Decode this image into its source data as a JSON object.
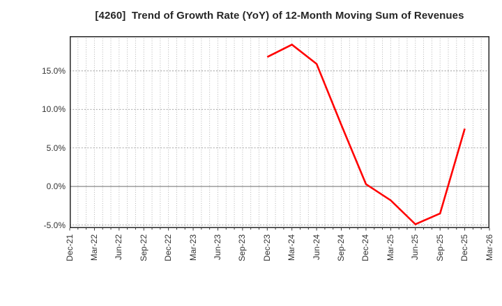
{
  "title": "[4260]  Trend of Growth Rate (YoY) of 12-Month Moving Sum of Revenues",
  "colors": {
    "line": "#ff0000",
    "plot_border": "#262626",
    "grid_minor": "#aaaaaa",
    "grid_major": "#999999",
    "zero_line": "#888888",
    "text": "#333333",
    "background": "#ffffff"
  },
  "chart_data": {
    "type": "line",
    "title": "[4260]  Trend of Growth Rate (YoY) of 12-Month Moving Sum of Revenues",
    "stock_code": "4260",
    "x_tick_labels": [
      "Dec-21",
      "Mar-22",
      "Jun-22",
      "Sep-22",
      "Dec-22",
      "Mar-23",
      "Jun-23",
      "Sep-23",
      "Dec-23",
      "Mar-24",
      "Jun-24",
      "Sep-24",
      "Dec-24",
      "Mar-25",
      "Jun-25",
      "Sep-25",
      "Dec-25",
      "Mar-26"
    ],
    "y_ticks": [
      {
        "value": 15,
        "label": "15.0%"
      },
      {
        "value": 10,
        "label": "10.0%"
      },
      {
        "value": 5,
        "label": "5.0%"
      },
      {
        "value": 0,
        "label": "0.0%"
      },
      {
        "value": -5,
        "label": "-5.0%"
      }
    ],
    "ylim": [
      -5.4,
      19.5
    ],
    "xlabel": "",
    "ylabel": "",
    "grid": "on",
    "minor_vertical_gridlines_per_quarter": 3,
    "zero_line": true,
    "legend": "none",
    "series": [
      {
        "name": "Growth Rate (YoY) of 12-Month Moving Sum of Revenues",
        "color": "#ff0000",
        "points": [
          {
            "x": "Dec-23",
            "y": 16.8
          },
          {
            "x": "Mar-24",
            "y": 18.4
          },
          {
            "x": "Jun-24",
            "y": 15.9
          },
          {
            "x": "Sep-24",
            "y": 8.0
          },
          {
            "x": "Dec-24",
            "y": 0.3
          },
          {
            "x": "Mar-25",
            "y": -1.8
          },
          {
            "x": "Jun-25",
            "y": -4.9
          },
          {
            "x": "Sep-25",
            "y": -3.5
          },
          {
            "x": "Dec-25",
            "y": 7.5
          }
        ]
      }
    ]
  }
}
